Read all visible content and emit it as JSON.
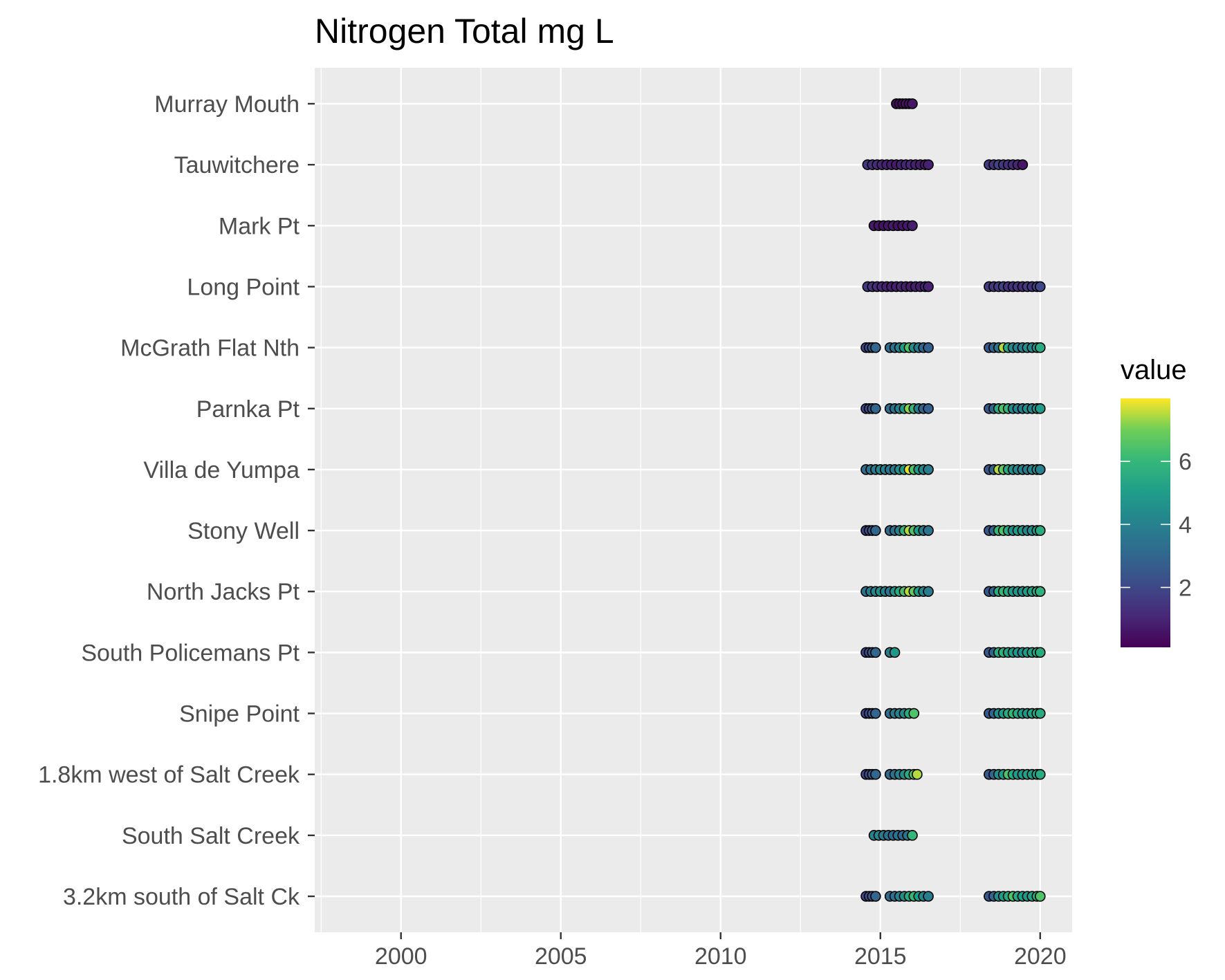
{
  "chart_data": {
    "type": "scatter",
    "title": "Nitrogen Total mg L",
    "xlabel": "",
    "ylabel": "",
    "x_range": [
      1997.3,
      2021.0
    ],
    "x_ticks": [
      2000,
      2005,
      2010,
      2015,
      2020
    ],
    "grid": true,
    "legend": {
      "title": "value",
      "position": "right",
      "type": "colorbar",
      "colormap": "viridis",
      "range": [
        0.1,
        8.0
      ],
      "ticks": [
        2,
        4,
        6
      ]
    },
    "categories": [
      "Murray Mouth",
      "Tauwitchere",
      "Mark Pt",
      "Long Point",
      "McGrath Flat Nth",
      "Parnka Pt",
      "Villa de Yumpa",
      "Stony Well",
      "North Jacks Pt",
      "South Policemans Pt",
      "Snipe Point",
      "1.8km west of Salt Creek",
      "South Salt Creek",
      "3.2km south of Salt Ck"
    ],
    "points": [
      {
        "site": "Murray Mouth",
        "x": [
          2015.5,
          2015.6,
          2015.7,
          2015.8,
          2015.9,
          2016.0
        ],
        "value": [
          0.3,
          0.4,
          0.3,
          0.5,
          0.4,
          0.6
        ]
      },
      {
        "site": "Tauwitchere",
        "x": [
          2014.6,
          2014.75,
          2014.9,
          2015.05,
          2015.2,
          2015.35,
          2015.5,
          2015.65,
          2015.8,
          2015.95,
          2016.1,
          2016.25,
          2016.4,
          2016.5,
          2018.4,
          2018.55,
          2018.7,
          2018.85,
          2019.0,
          2019.15,
          2019.3,
          2019.45
        ],
        "value": [
          1.5,
          1.3,
          1.2,
          1.0,
          0.9,
          0.8,
          0.7,
          0.9,
          1.0,
          1.1,
          0.9,
          0.8,
          0.7,
          0.9,
          1.6,
          1.4,
          1.8,
          1.5,
          1.3,
          1.2,
          1.0,
          0.6
        ]
      },
      {
        "site": "Mark Pt",
        "x": [
          2014.8,
          2014.95,
          2015.1,
          2015.25,
          2015.4,
          2015.55,
          2015.7,
          2015.85,
          2016.0
        ],
        "value": [
          0.7,
          0.6,
          0.5,
          0.6,
          0.7,
          0.5,
          0.6,
          0.7,
          0.8
        ]
      },
      {
        "site": "Long Point",
        "x": [
          2014.6,
          2014.75,
          2014.9,
          2015.05,
          2015.2,
          2015.35,
          2015.5,
          2015.65,
          2015.8,
          2015.95,
          2016.1,
          2016.25,
          2016.4,
          2016.5,
          2018.4,
          2018.55,
          2018.7,
          2018.85,
          2019.0,
          2019.15,
          2019.3,
          2019.45,
          2019.6,
          2019.75,
          2019.9,
          2020.0
        ],
        "value": [
          1.6,
          1.4,
          1.2,
          1.1,
          0.9,
          0.8,
          0.9,
          1.0,
          0.8,
          0.7,
          0.9,
          0.8,
          1.0,
          0.9,
          1.7,
          1.5,
          1.6,
          1.8,
          1.4,
          1.3,
          1.5,
          1.2,
          1.6,
          1.4,
          1.8,
          2.0
        ]
      },
      {
        "site": "McGrath Flat Nth",
        "x": [
          2014.55,
          2014.65,
          2014.75,
          2014.85,
          2015.3,
          2015.45,
          2015.6,
          2015.75,
          2015.9,
          2016.05,
          2016.2,
          2016.35,
          2016.5,
          2018.4,
          2018.55,
          2018.7,
          2018.85,
          2019.0,
          2019.15,
          2019.3,
          2019.45,
          2019.6,
          2019.75,
          2019.9,
          2020.0
        ],
        "value": [
          2.0,
          2.2,
          2.5,
          3.0,
          3.2,
          3.5,
          4.0,
          5.0,
          6.5,
          4.5,
          3.8,
          3.0,
          2.8,
          2.5,
          3.0,
          3.5,
          7.5,
          5.5,
          4.2,
          4.0,
          3.8,
          4.5,
          4.2,
          4.8,
          5.5
        ]
      },
      {
        "site": "Parnka Pt",
        "x": [
          2014.55,
          2014.65,
          2014.75,
          2014.85,
          2015.3,
          2015.45,
          2015.6,
          2015.75,
          2015.9,
          2016.05,
          2016.2,
          2016.35,
          2016.5,
          2018.4,
          2018.55,
          2018.7,
          2018.85,
          2019.0,
          2019.15,
          2019.3,
          2019.45,
          2019.6,
          2019.75,
          2019.9,
          2020.0
        ],
        "value": [
          2.0,
          2.2,
          2.5,
          3.0,
          3.2,
          3.5,
          4.0,
          5.0,
          7.2,
          6.0,
          3.8,
          3.0,
          2.8,
          2.5,
          3.0,
          5.5,
          6.5,
          6.0,
          4.2,
          4.0,
          3.8,
          4.5,
          4.2,
          4.8,
          5.0
        ]
      },
      {
        "site": "Villa de Yumpa",
        "x": [
          2014.55,
          2014.7,
          2014.85,
          2015.0,
          2015.15,
          2015.3,
          2015.45,
          2015.6,
          2015.75,
          2015.9,
          2016.05,
          2016.2,
          2016.35,
          2016.5,
          2018.4,
          2018.55,
          2018.7,
          2018.85,
          2019.0,
          2019.15,
          2019.3,
          2019.45,
          2019.6,
          2019.75,
          2019.9,
          2020.0
        ],
        "value": [
          3.2,
          3.5,
          3.8,
          4.2,
          4.0,
          3.6,
          3.8,
          4.5,
          5.0,
          7.8,
          6.5,
          4.8,
          4.2,
          3.8,
          2.5,
          3.0,
          7.5,
          6.8,
          5.5,
          4.5,
          4.2,
          4.0,
          3.8,
          4.2,
          4.5,
          4.0
        ]
      },
      {
        "site": "Stony Well",
        "x": [
          2014.55,
          2014.65,
          2014.75,
          2014.85,
          2015.3,
          2015.45,
          2015.6,
          2015.75,
          2015.9,
          2016.05,
          2016.2,
          2016.35,
          2016.5,
          2018.4,
          2018.55,
          2018.7,
          2018.85,
          2019.0,
          2019.15,
          2019.3,
          2019.45,
          2019.6,
          2019.75,
          2019.9,
          2020.0
        ],
        "value": [
          2.0,
          2.2,
          2.5,
          3.0,
          3.2,
          3.5,
          4.0,
          6.0,
          7.5,
          6.5,
          5.0,
          3.8,
          3.5,
          2.5,
          3.0,
          6.0,
          6.5,
          5.5,
          4.5,
          5.0,
          4.8,
          4.2,
          4.5,
          5.0,
          5.5
        ]
      },
      {
        "site": "North Jacks Pt",
        "x": [
          2014.55,
          2014.7,
          2014.85,
          2015.0,
          2015.15,
          2015.3,
          2015.45,
          2015.6,
          2015.75,
          2015.9,
          2016.05,
          2016.2,
          2016.35,
          2016.5,
          2018.4,
          2018.55,
          2018.7,
          2018.85,
          2019.0,
          2019.15,
          2019.3,
          2019.45,
          2019.6,
          2019.75,
          2019.9,
          2020.0
        ],
        "value": [
          3.5,
          3.8,
          4.2,
          4.5,
          4.0,
          3.6,
          4.8,
          5.5,
          6.5,
          7.5,
          6.8,
          5.0,
          4.2,
          3.8,
          2.5,
          3.0,
          5.5,
          6.0,
          5.5,
          5.0,
          4.8,
          4.5,
          5.0,
          5.2,
          5.5,
          5.8
        ]
      },
      {
        "site": "South Policemans Pt",
        "x": [
          2014.55,
          2014.65,
          2014.75,
          2014.85,
          2015.3,
          2015.45,
          2018.4,
          2018.55,
          2018.7,
          2018.85,
          2019.0,
          2019.15,
          2019.3,
          2019.45,
          2019.6,
          2019.75,
          2019.9,
          2020.0
        ],
        "value": [
          2.0,
          2.2,
          2.5,
          3.0,
          3.8,
          4.8,
          2.5,
          3.0,
          5.5,
          5.8,
          5.2,
          5.0,
          4.8,
          4.5,
          5.0,
          5.2,
          5.5,
          5.5
        ]
      },
      {
        "site": "Snipe Point",
        "x": [
          2014.55,
          2014.65,
          2014.75,
          2014.85,
          2015.3,
          2015.45,
          2015.6,
          2015.75,
          2015.9,
          2016.05,
          2018.4,
          2018.55,
          2018.7,
          2018.85,
          2019.0,
          2019.15,
          2019.3,
          2019.45,
          2019.6,
          2019.75,
          2019.9,
          2020.0
        ],
        "value": [
          2.0,
          2.2,
          2.5,
          3.0,
          3.2,
          3.8,
          4.0,
          4.5,
          5.5,
          6.5,
          2.5,
          3.0,
          4.5,
          5.0,
          5.5,
          6.0,
          5.5,
          5.0,
          4.8,
          5.2,
          5.5,
          5.5
        ]
      },
      {
        "site": "1.8km west of Salt Creek",
        "x": [
          2014.55,
          2014.65,
          2014.75,
          2014.85,
          2015.3,
          2015.45,
          2015.6,
          2015.75,
          2015.9,
          2016.05,
          2016.15,
          2018.4,
          2018.55,
          2018.7,
          2018.85,
          2019.0,
          2019.15,
          2019.3,
          2019.45,
          2019.6,
          2019.75,
          2019.9,
          2020.0
        ],
        "value": [
          2.0,
          2.2,
          2.5,
          3.0,
          3.2,
          3.5,
          4.0,
          4.5,
          5.5,
          6.5,
          7.5,
          2.5,
          3.0,
          4.5,
          5.0,
          6.5,
          5.5,
          5.0,
          4.8,
          5.2,
          5.0,
          5.2,
          5.5
        ]
      },
      {
        "site": "South Salt Creek",
        "x": [
          2014.8,
          2014.95,
          2015.1,
          2015.25,
          2015.4,
          2015.55,
          2015.7,
          2015.85,
          2016.0
        ],
        "value": [
          4.0,
          4.2,
          3.8,
          3.5,
          3.2,
          3.5,
          3.0,
          3.5,
          6.0
        ]
      },
      {
        "site": "3.2km south of Salt Ck",
        "x": [
          2014.55,
          2014.65,
          2014.75,
          2014.85,
          2015.3,
          2015.45,
          2015.6,
          2015.75,
          2015.9,
          2016.05,
          2016.2,
          2016.35,
          2016.5,
          2018.4,
          2018.55,
          2018.7,
          2018.85,
          2019.0,
          2019.15,
          2019.3,
          2019.45,
          2019.6,
          2019.75,
          2019.9,
          2020.0
        ],
        "value": [
          2.0,
          2.2,
          2.5,
          3.0,
          3.2,
          3.5,
          4.0,
          4.5,
          5.5,
          6.0,
          5.0,
          4.2,
          3.8,
          2.5,
          3.0,
          4.5,
          5.0,
          5.5,
          6.5,
          5.5,
          5.0,
          4.8,
          5.2,
          5.5,
          6.5
        ]
      }
    ]
  }
}
